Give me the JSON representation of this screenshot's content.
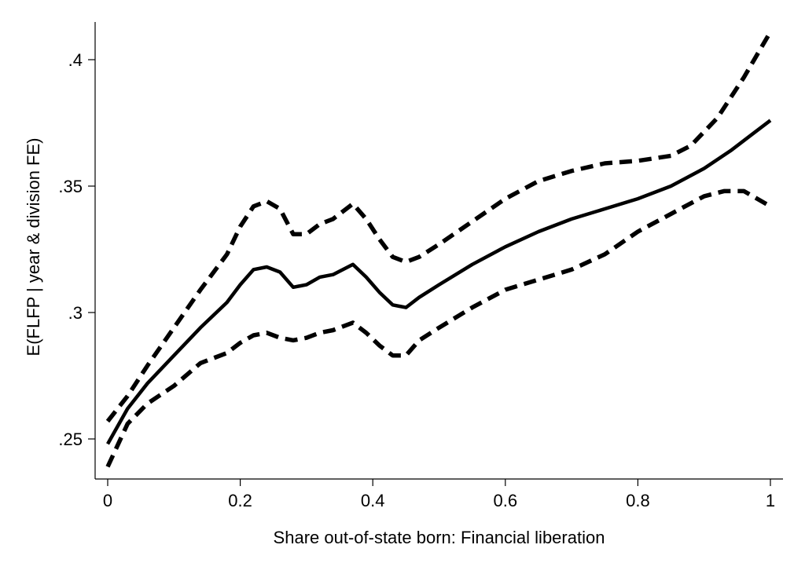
{
  "chart_data": {
    "type": "line",
    "title": "",
    "xlabel": "Share out-of-state born: Financial liberation",
    "ylabel": "E(FLFP | year & division FE)",
    "xlim": [
      0,
      1
    ],
    "ylim": [
      0.235,
      0.415
    ],
    "grid": false,
    "legend": "none",
    "x_ticks": [
      {
        "value": 0,
        "label": "0"
      },
      {
        "value": 0.2,
        "label": "0.2"
      },
      {
        "value": 0.4,
        "label": "0.4"
      },
      {
        "value": 0.6,
        "label": "0.6"
      },
      {
        "value": 0.8,
        "label": "0.8"
      },
      {
        "value": 1,
        "label": "1"
      }
    ],
    "y_ticks": [
      {
        "value": 0.25,
        "label": ".25"
      },
      {
        "value": 0.3,
        "label": ".3"
      },
      {
        "value": 0.35,
        "label": ".35"
      },
      {
        "value": 0.4,
        "label": ".4"
      }
    ],
    "series": [
      {
        "style": "solid",
        "color": "#000000",
        "x": [
          0,
          0.03,
          0.06,
          0.1,
          0.14,
          0.18,
          0.2,
          0.22,
          0.24,
          0.26,
          0.28,
          0.3,
          0.32,
          0.34,
          0.37,
          0.39,
          0.41,
          0.43,
          0.45,
          0.47,
          0.5,
          0.55,
          0.6,
          0.65,
          0.7,
          0.75,
          0.8,
          0.85,
          0.9,
          0.94,
          0.97,
          1
        ],
        "y": [
          0.248,
          0.262,
          0.272,
          0.283,
          0.294,
          0.304,
          0.311,
          0.317,
          0.318,
          0.316,
          0.31,
          0.311,
          0.314,
          0.315,
          0.319,
          0.314,
          0.308,
          0.303,
          0.302,
          0.306,
          0.311,
          0.319,
          0.326,
          0.332,
          0.337,
          0.341,
          0.345,
          0.35,
          0.357,
          0.364,
          0.37,
          0.376
        ]
      },
      {
        "style": "dashed",
        "color": "#000000",
        "x": [
          0,
          0.03,
          0.06,
          0.1,
          0.14,
          0.18,
          0.2,
          0.22,
          0.24,
          0.26,
          0.28,
          0.3,
          0.32,
          0.34,
          0.37,
          0.39,
          0.41,
          0.43,
          0.45,
          0.47,
          0.5,
          0.55,
          0.6,
          0.65,
          0.7,
          0.75,
          0.8,
          0.85,
          0.88,
          0.92,
          0.96,
          1
        ],
        "y": [
          0.257,
          0.267,
          0.279,
          0.294,
          0.309,
          0.323,
          0.334,
          0.342,
          0.344,
          0.341,
          0.331,
          0.331,
          0.335,
          0.337,
          0.343,
          0.337,
          0.329,
          0.322,
          0.32,
          0.322,
          0.327,
          0.336,
          0.345,
          0.352,
          0.356,
          0.359,
          0.36,
          0.362,
          0.366,
          0.377,
          0.393,
          0.411
        ]
      },
      {
        "style": "dashed",
        "color": "#000000",
        "x": [
          0,
          0.03,
          0.06,
          0.1,
          0.14,
          0.18,
          0.2,
          0.22,
          0.24,
          0.26,
          0.28,
          0.3,
          0.32,
          0.34,
          0.37,
          0.39,
          0.41,
          0.43,
          0.45,
          0.47,
          0.5,
          0.55,
          0.6,
          0.65,
          0.7,
          0.75,
          0.8,
          0.85,
          0.9,
          0.93,
          0.96,
          1
        ],
        "y": [
          0.239,
          0.256,
          0.264,
          0.271,
          0.28,
          0.284,
          0.288,
          0.291,
          0.292,
          0.29,
          0.289,
          0.29,
          0.292,
          0.293,
          0.296,
          0.292,
          0.287,
          0.283,
          0.283,
          0.289,
          0.294,
          0.302,
          0.309,
          0.313,
          0.317,
          0.323,
          0.332,
          0.339,
          0.346,
          0.348,
          0.348,
          0.342
        ]
      }
    ]
  }
}
